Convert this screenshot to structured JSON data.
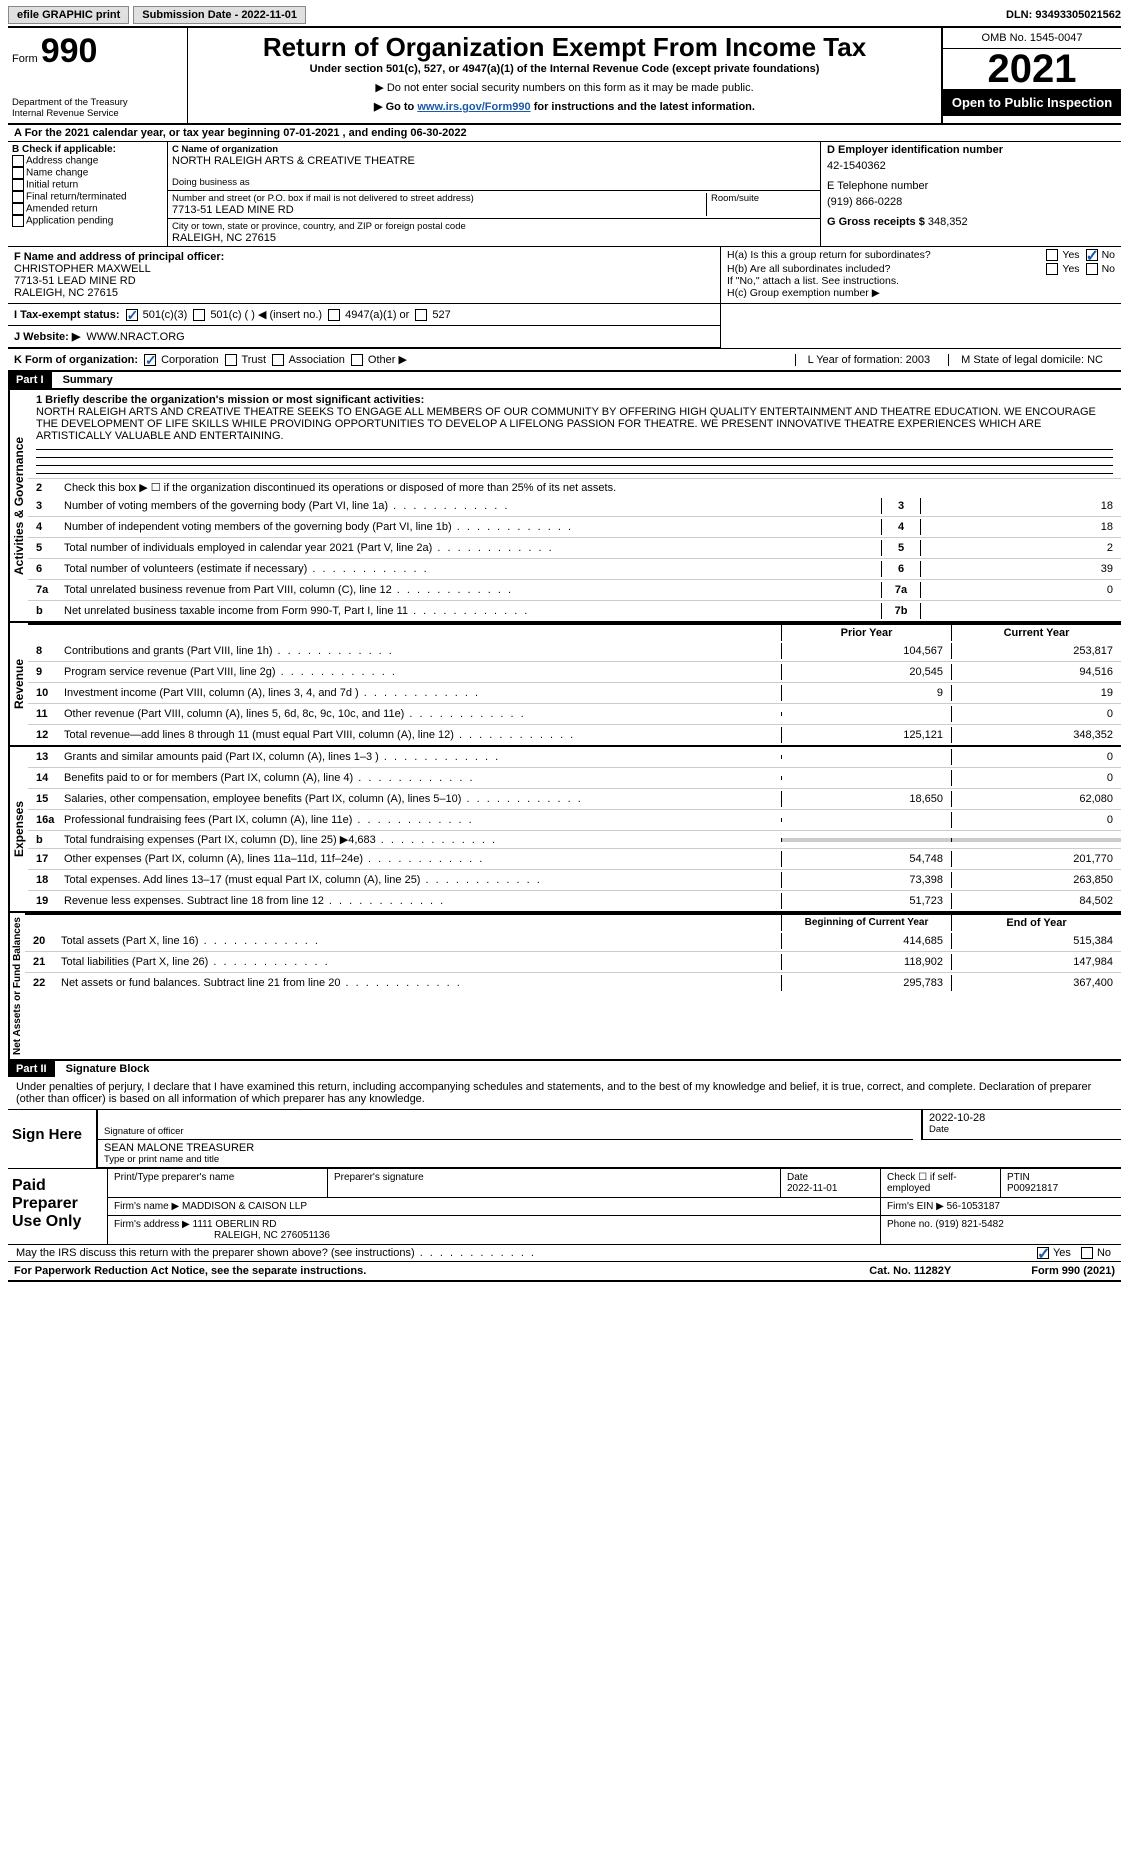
{
  "topbar": {
    "print": "efile GRAPHIC print",
    "submission": "Submission Date - 2022-11-01",
    "dln": "DLN: 93493305021562"
  },
  "header": {
    "form_label": "Form",
    "form_number": "990",
    "dept": "Department of the Treasury",
    "irs": "Internal Revenue Service",
    "title": "Return of Organization Exempt From Income Tax",
    "under": "Under section 501(c), 527, or 4947(a)(1) of the Internal Revenue Code (except private foundations)",
    "note1": "▶ Do not enter social security numbers on this form as it may be made public.",
    "note2_pre": "▶ Go to ",
    "note2_link": "www.irs.gov/Form990",
    "note2_post": " for instructions and the latest information.",
    "omb": "OMB No. 1545-0047",
    "year": "2021",
    "open": "Open to Public Inspection"
  },
  "rowA": "A For the 2021 calendar year, or tax year beginning 07-01-2021    , and ending 06-30-2022",
  "secB": {
    "title": "B Check if applicable:",
    "opts": [
      "Address change",
      "Name change",
      "Initial return",
      "Final return/terminated",
      "Amended return",
      "Application pending"
    ]
  },
  "secC": {
    "name_lbl": "C Name of organization",
    "name": "NORTH RALEIGH ARTS & CREATIVE THEATRE",
    "dba_lbl": "Doing business as",
    "street_lbl": "Number and street (or P.O. box if mail is not delivered to street address)",
    "street": "7713-51 LEAD MINE RD",
    "room_lbl": "Room/suite",
    "city_lbl": "City or town, state or province, country, and ZIP or foreign postal code",
    "city": "RALEIGH, NC  27615"
  },
  "secD": {
    "ein_lbl": "D Employer identification number",
    "ein": "42-1540362",
    "tel_lbl": "E Telephone number",
    "tel": "(919) 866-0228",
    "gross_lbl": "G Gross receipts $",
    "gross": "348,352"
  },
  "secF": {
    "lbl": "F  Name and address of principal officer:",
    "name": "CHRISTOPHER MAXWELL",
    "addr1": "7713-51 LEAD MINE RD",
    "addr2": "RALEIGH, NC  27615"
  },
  "secH": {
    "ha": "H(a)  Is this a group return for subordinates?",
    "hb": "H(b)  Are all subordinates included?",
    "hb_note": "If \"No,\" attach a list. See instructions.",
    "hc": "H(c)  Group exemption number ▶",
    "yes": "Yes",
    "no": "No"
  },
  "rowI": {
    "lbl": "I    Tax-exempt status:",
    "o1": "501(c)(3)",
    "o2": "501(c) (   ) ◀ (insert no.)",
    "o3": "4947(a)(1) or",
    "o4": "527"
  },
  "rowJ": {
    "lbl": "J   Website: ▶",
    "val": "WWW.NRACT.ORG"
  },
  "rowK": {
    "lbl": "K Form of organization:",
    "o1": "Corporation",
    "o2": "Trust",
    "o3": "Association",
    "o4": "Other ▶",
    "L": "L Year of formation: 2003",
    "M": "M State of legal domicile: NC"
  },
  "part1": {
    "hdr": "Part I",
    "title": "Summary"
  },
  "mission": {
    "lbl": "1  Briefly describe the organization's mission or most significant activities:",
    "text": "NORTH RALEIGH ARTS AND CREATIVE THEATRE SEEKS TO ENGAGE ALL MEMBERS OF OUR COMMUNITY BY OFFERING HIGH QUALITY ENTERTAINMENT AND THEATRE EDUCATION. WE ENCOURAGE THE DEVELOPMENT OF LIFE SKILLS WHILE PROVIDING OPPORTUNITIES TO DEVELOP A LIFELONG PASSION FOR THEATRE. WE PRESENT INNOVATIVE THEATRE EXPERIENCES WHICH ARE ARTISTICALLY VALUABLE AND ENTERTAINING."
  },
  "gov": {
    "vert": "Activities & Governance",
    "l2": "Check this box ▶ ☐  if the organization discontinued its operations or disposed of more than 25% of its net assets.",
    "lines": [
      {
        "n": "3",
        "t": "Number of voting members of the governing body (Part VI, line 1a)",
        "c": "3",
        "v": "18"
      },
      {
        "n": "4",
        "t": "Number of independent voting members of the governing body (Part VI, line 1b)",
        "c": "4",
        "v": "18"
      },
      {
        "n": "5",
        "t": "Total number of individuals employed in calendar year 2021 (Part V, line 2a)",
        "c": "5",
        "v": "2"
      },
      {
        "n": "6",
        "t": "Total number of volunteers (estimate if necessary)",
        "c": "6",
        "v": "39"
      },
      {
        "n": "7a",
        "t": "Total unrelated business revenue from Part VIII, column (C), line 12",
        "c": "7a",
        "v": "0"
      },
      {
        "n": "b",
        "t": "Net unrelated business taxable income from Form 990-T, Part I, line 11",
        "c": "7b",
        "v": ""
      }
    ]
  },
  "rev": {
    "vert": "Revenue",
    "hdr_prior": "Prior Year",
    "hdr_curr": "Current Year",
    "lines": [
      {
        "n": "8",
        "t": "Contributions and grants (Part VIII, line 1h)",
        "p": "104,567",
        "c": "253,817"
      },
      {
        "n": "9",
        "t": "Program service revenue (Part VIII, line 2g)",
        "p": "20,545",
        "c": "94,516"
      },
      {
        "n": "10",
        "t": "Investment income (Part VIII, column (A), lines 3, 4, and 7d )",
        "p": "9",
        "c": "19"
      },
      {
        "n": "11",
        "t": "Other revenue (Part VIII, column (A), lines 5, 6d, 8c, 9c, 10c, and 11e)",
        "p": "",
        "c": "0"
      },
      {
        "n": "12",
        "t": "Total revenue—add lines 8 through 11 (must equal Part VIII, column (A), line 12)",
        "p": "125,121",
        "c": "348,352"
      }
    ]
  },
  "exp": {
    "vert": "Expenses",
    "lines": [
      {
        "n": "13",
        "t": "Grants and similar amounts paid (Part IX, column (A), lines 1–3 )",
        "p": "",
        "c": "0"
      },
      {
        "n": "14",
        "t": "Benefits paid to or for members (Part IX, column (A), line 4)",
        "p": "",
        "c": "0"
      },
      {
        "n": "15",
        "t": "Salaries, other compensation, employee benefits (Part IX, column (A), lines 5–10)",
        "p": "18,650",
        "c": "62,080"
      },
      {
        "n": "16a",
        "t": "Professional fundraising fees (Part IX, column (A), line 11e)",
        "p": "",
        "c": "0"
      },
      {
        "n": "b",
        "t": "Total fundraising expenses (Part IX, column (D), line 25) ▶4,683",
        "p": "grey",
        "c": "grey"
      },
      {
        "n": "17",
        "t": "Other expenses (Part IX, column (A), lines 11a–11d, 11f–24e)",
        "p": "54,748",
        "c": "201,770"
      },
      {
        "n": "18",
        "t": "Total expenses. Add lines 13–17 (must equal Part IX, column (A), line 25)",
        "p": "73,398",
        "c": "263,850"
      },
      {
        "n": "19",
        "t": "Revenue less expenses. Subtract line 18 from line 12",
        "p": "51,723",
        "c": "84,502"
      }
    ]
  },
  "net": {
    "vert": "Net Assets or Fund Balances",
    "hdr_beg": "Beginning of Current Year",
    "hdr_end": "End of Year",
    "lines": [
      {
        "n": "20",
        "t": "Total assets (Part X, line 16)",
        "p": "414,685",
        "c": "515,384"
      },
      {
        "n": "21",
        "t": "Total liabilities (Part X, line 26)",
        "p": "118,902",
        "c": "147,984"
      },
      {
        "n": "22",
        "t": "Net assets or fund balances. Subtract line 21 from line 20",
        "p": "295,783",
        "c": "367,400"
      }
    ]
  },
  "part2": {
    "hdr": "Part II",
    "title": "Signature Block"
  },
  "sig": {
    "decl": "Under penalties of perjury, I declare that I have examined this return, including accompanying schedules and statements, and to the best of my knowledge and belief, it is true, correct, and complete. Declaration of preparer (other than officer) is based on all information of which preparer has any knowledge.",
    "sign_here": "Sign Here",
    "sig_lbl": "Signature of officer",
    "date": "2022-10-28",
    "date_lbl": "Date",
    "name": "SEAN MALONE TREASURER",
    "name_lbl": "Type or print name and title"
  },
  "prep": {
    "title": "Paid Preparer Use Only",
    "h1": "Print/Type preparer's name",
    "h2": "Preparer's signature",
    "h3": "Date",
    "h3v": "2022-11-01",
    "h4": "Check ☐ if self-employed",
    "h5": "PTIN",
    "h5v": "P00921817",
    "firm_lbl": "Firm's name    ▶",
    "firm": "MADDISON & CAISON LLP",
    "ein_lbl": "Firm's EIN ▶",
    "ein": "56-1053187",
    "addr_lbl": "Firm's address ▶",
    "addr1": "1111 OBERLIN RD",
    "addr2": "RALEIGH, NC  276051136",
    "phone_lbl": "Phone no.",
    "phone": "(919) 821-5482"
  },
  "discuss": {
    "q": "May the IRS discuss this return with the preparer shown above? (see instructions)",
    "yes": "Yes",
    "no": "No"
  },
  "footer": {
    "left": "For Paperwork Reduction Act Notice, see the separate instructions.",
    "mid": "Cat. No. 11282Y",
    "right": "Form 990 (2021)"
  }
}
